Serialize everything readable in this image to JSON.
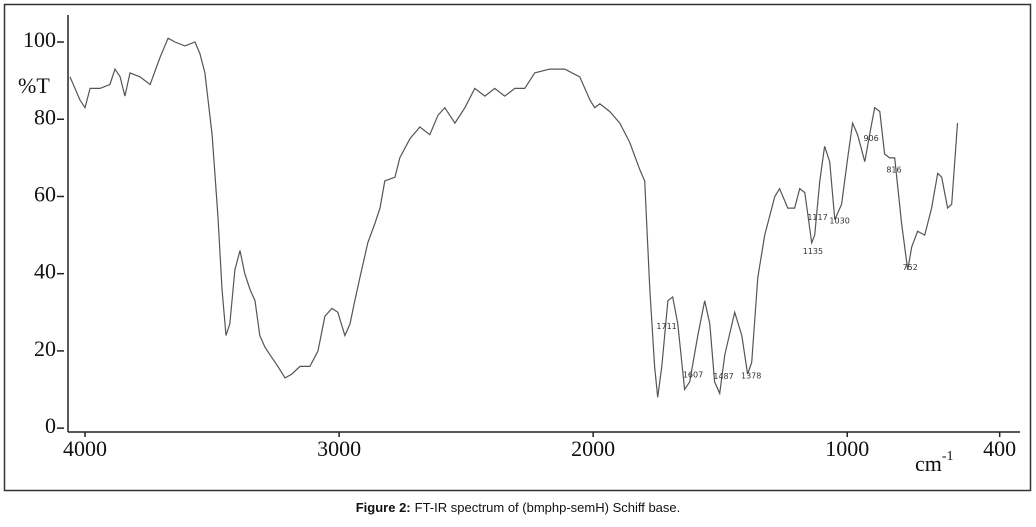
{
  "chart_data": {
    "type": "line",
    "y_label": "%T",
    "x_label": "cm",
    "x_label_sup": "-1",
    "caption_label": "Figure 2:",
    "caption": "FT-IR spectrum of (bmphp-semH) Schiff base.",
    "xlim": [
      4067,
      320
    ],
    "ylim": [
      -1,
      107
    ],
    "xticks": [
      4000,
      3000,
      2000,
      1000,
      400
    ],
    "yticks": [
      0,
      20,
      40,
      60,
      80,
      100
    ],
    "annotations": [
      1711,
      1607,
      1487,
      1378,
      1135,
      1117,
      1030,
      906,
      816,
      752
    ],
    "series": [
      {
        "color": "#555555",
        "x": [
          4059,
          4020,
          4000,
          3980,
          3941,
          3902,
          3882,
          3862,
          3843,
          3823,
          3784,
          3744,
          3705,
          3673,
          3646,
          3607,
          3567,
          3548,
          3528,
          3500,
          3477,
          3461,
          3445,
          3430,
          3410,
          3390,
          3371,
          3351,
          3331,
          3312,
          3292,
          3272,
          3241,
          3213,
          3186,
          3154,
          3115,
          3083,
          3056,
          3028,
          3005,
          2977,
          2957,
          2938,
          2918,
          2887,
          2859,
          2839,
          2820,
          2780,
          2761,
          2721,
          2682,
          2643,
          2611,
          2584,
          2544,
          2505,
          2466,
          2426,
          2387,
          2348,
          2308,
          2269,
          2230,
          2171,
          2112,
          2053,
          2013,
          1994,
          1974,
          1935,
          1895,
          1856,
          1817,
          1797,
          1777,
          1758,
          1746,
          1730,
          1706,
          1687,
          1667,
          1640,
          1620,
          1588,
          1561,
          1541,
          1522,
          1502,
          1482,
          1443,
          1415,
          1392,
          1376,
          1352,
          1325,
          1285,
          1266,
          1234,
          1207,
          1187,
          1167,
          1140,
          1128,
          1108,
          1089,
          1069,
          1049,
          1022,
          998,
          979,
          959,
          931,
          912,
          892,
          872,
          853,
          833,
          813,
          786,
          762,
          746,
          723,
          695,
          668,
          644,
          628,
          605,
          589,
          566
        ],
        "values": [
          91,
          85,
          83,
          88,
          88,
          89,
          93,
          91,
          86,
          92,
          91,
          89,
          96,
          101,
          100,
          99,
          100,
          97,
          92,
          76,
          55,
          36,
          24,
          27,
          41,
          46,
          40,
          36,
          33,
          24,
          21,
          19,
          16,
          13,
          14,
          16,
          16,
          20,
          29,
          31,
          30,
          24,
          27,
          33,
          39,
          48,
          53,
          57,
          64,
          65,
          70,
          75,
          78,
          76,
          81,
          83,
          79,
          83,
          88,
          86,
          88,
          86,
          88,
          88,
          92,
          93,
          93,
          91,
          85,
          83,
          84,
          82,
          79,
          74,
          67,
          64,
          36,
          16,
          8,
          16,
          33,
          34,
          27,
          10,
          12,
          24,
          33,
          27,
          12,
          9,
          19,
          30,
          24,
          14,
          17,
          39,
          50,
          60,
          62,
          57,
          57,
          62,
          61,
          48,
          50,
          64,
          73,
          69,
          54,
          58,
          70,
          79,
          76,
          69,
          76,
          83,
          82,
          71,
          70,
          70,
          53,
          41,
          47,
          51,
          50,
          57,
          66,
          65,
          57,
          58,
          79
        ]
      }
    ]
  }
}
